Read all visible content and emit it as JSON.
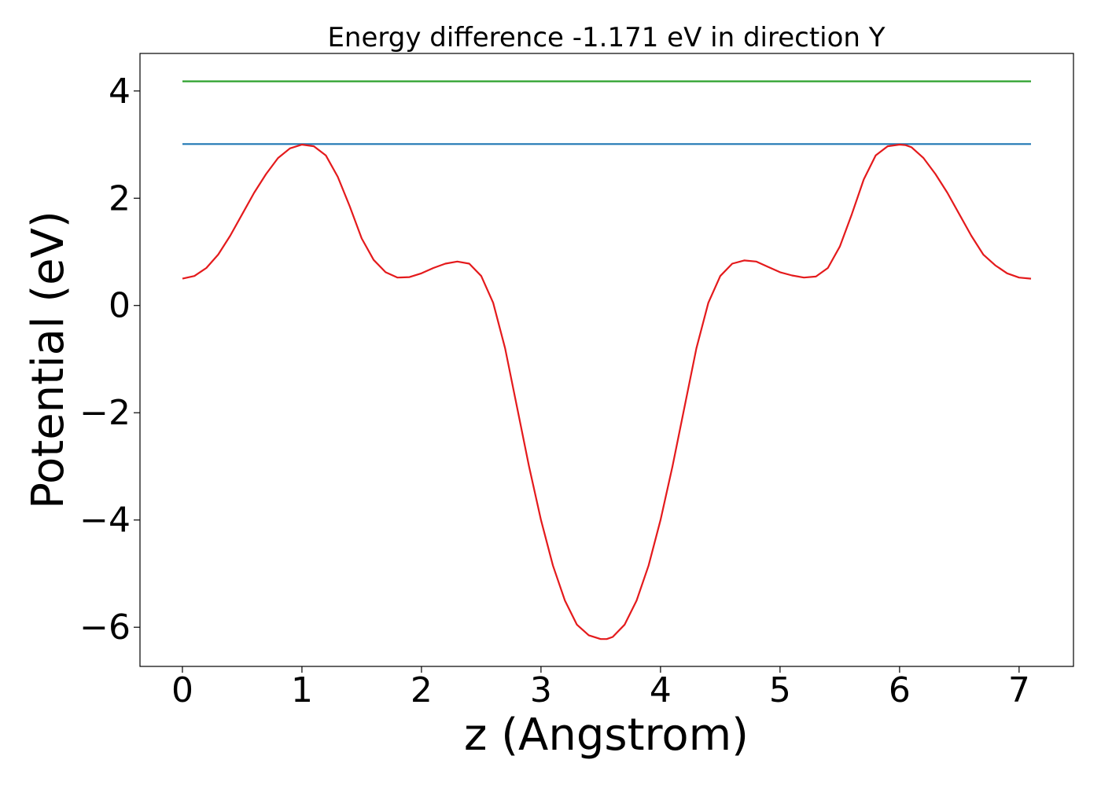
{
  "chart_data": {
    "type": "line",
    "title": "Energy difference -1.171 eV in direction Y",
    "xlabel": "z (Angstrom)",
    "ylabel": "Potential (eV)",
    "xlim": [
      -0.355,
      7.455
    ],
    "ylim": [
      -6.73,
      4.7
    ],
    "x_ticks": [
      0,
      1,
      2,
      3,
      4,
      5,
      6,
      7
    ],
    "x_tick_labels": [
      "0",
      "1",
      "2",
      "3",
      "4",
      "5",
      "6",
      "7"
    ],
    "y_ticks": [
      4,
      2,
      0,
      -2,
      -4,
      -6
    ],
    "y_tick_labels": [
      "4",
      "2",
      "0",
      "−2",
      "−4",
      "−6"
    ],
    "grid": false,
    "series": [
      {
        "color": "#2ca02c",
        "x": [
          0,
          7.1
        ],
        "y": [
          4.18,
          4.18
        ]
      },
      {
        "color": "#1f77b4",
        "x": [
          0,
          7.1
        ],
        "y": [
          3.01,
          3.01
        ]
      },
      {
        "color": "#e41a1c",
        "x": [
          0,
          0.1,
          0.2,
          0.3,
          0.4,
          0.5,
          0.6,
          0.7,
          0.8,
          0.9,
          1.0,
          1.1,
          1.2,
          1.3,
          1.4,
          1.5,
          1.6,
          1.7,
          1.8,
          1.9,
          2.0,
          2.1,
          2.2,
          2.3,
          2.4,
          2.5,
          2.6,
          2.7,
          2.8,
          2.9,
          3.0,
          3.1,
          3.2,
          3.3,
          3.4,
          3.5,
          3.55,
          3.6,
          3.7,
          3.8,
          3.9,
          4.0,
          4.1,
          4.2,
          4.3,
          4.4,
          4.5,
          4.6,
          4.7,
          4.8,
          4.9,
          5.0,
          5.1,
          5.2,
          5.3,
          5.4,
          5.5,
          5.6,
          5.7,
          5.8,
          5.9,
          6.0,
          6.05,
          6.1,
          6.2,
          6.3,
          6.4,
          6.5,
          6.6,
          6.7,
          6.8,
          6.9,
          7.0,
          7.1
        ],
        "y": [
          0.5,
          0.55,
          0.7,
          0.95,
          1.3,
          1.7,
          2.1,
          2.45,
          2.75,
          2.93,
          3.0,
          2.97,
          2.8,
          2.4,
          1.85,
          1.25,
          0.85,
          0.62,
          0.52,
          0.53,
          0.6,
          0.7,
          0.78,
          0.82,
          0.78,
          0.55,
          0.05,
          -0.8,
          -1.9,
          -3.0,
          -4.0,
          -4.85,
          -5.5,
          -5.95,
          -6.15,
          -6.22,
          -6.22,
          -6.18,
          -5.95,
          -5.5,
          -4.85,
          -4.0,
          -3.0,
          -1.9,
          -0.8,
          0.05,
          0.55,
          0.78,
          0.84,
          0.82,
          0.72,
          0.62,
          0.56,
          0.52,
          0.54,
          0.7,
          1.1,
          1.7,
          2.35,
          2.8,
          2.97,
          3.0,
          2.99,
          2.95,
          2.75,
          2.45,
          2.1,
          1.7,
          1.3,
          0.95,
          0.75,
          0.6,
          0.52,
          0.5
        ]
      }
    ]
  }
}
